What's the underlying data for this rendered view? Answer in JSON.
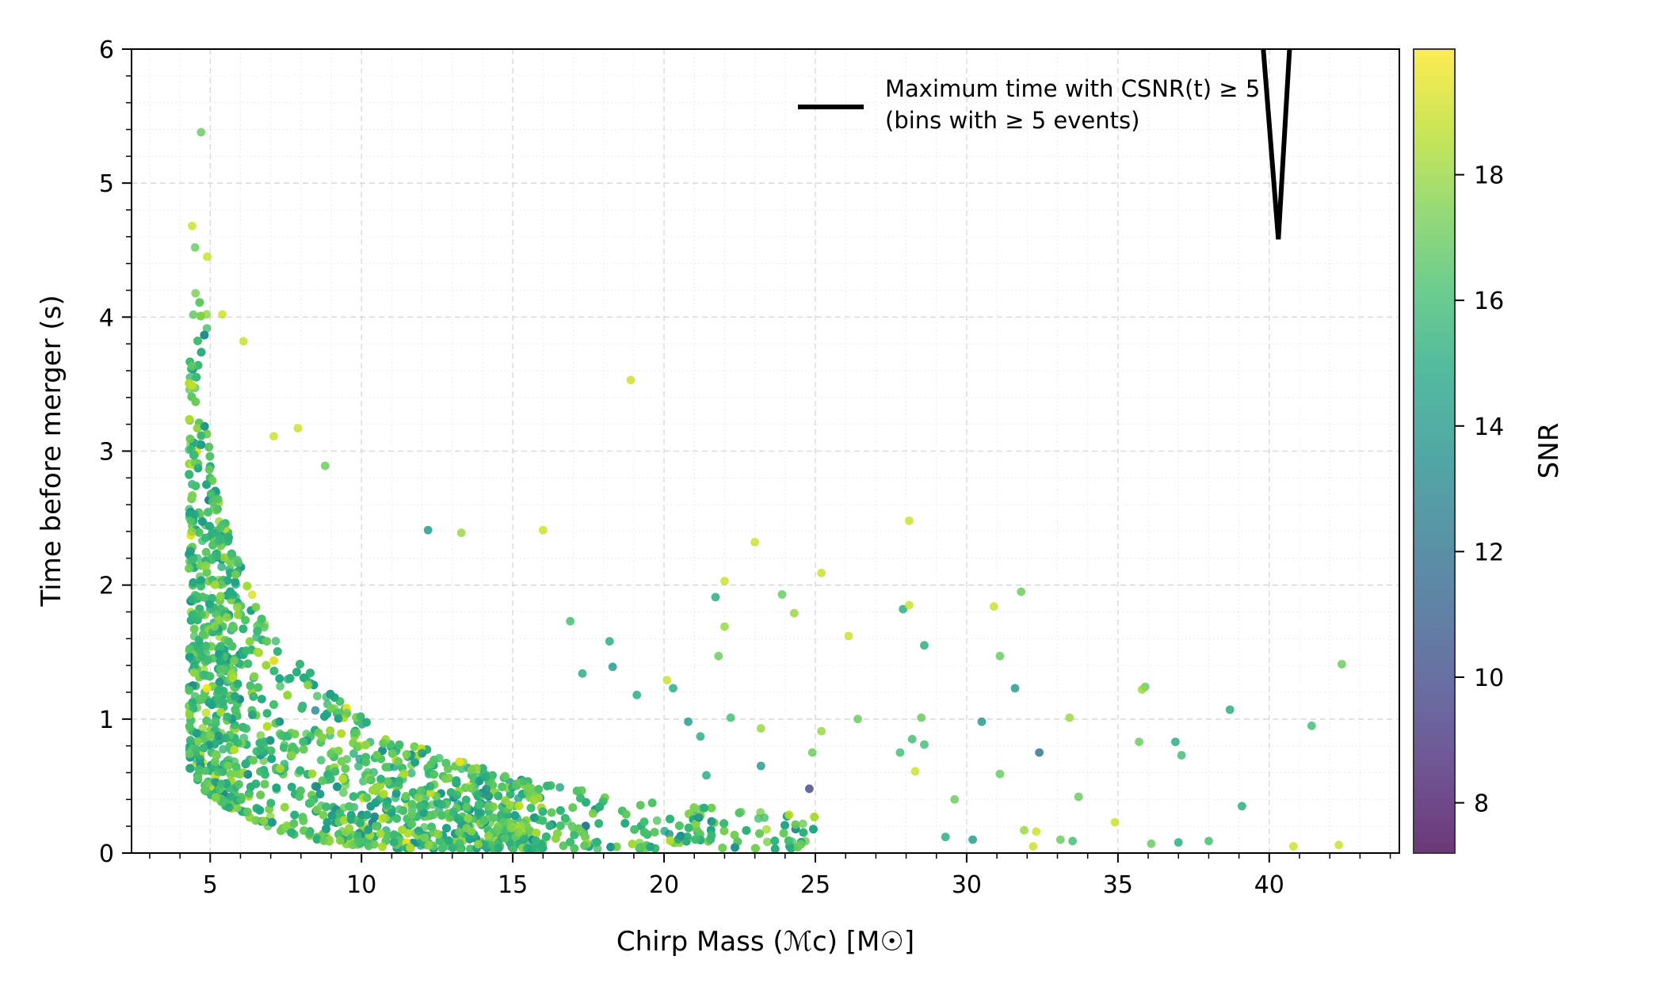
{
  "chart_data": {
    "type": "scatter",
    "xlabel": "Chirp Mass (ℳc) [M☉]",
    "ylabel": "Time before merger (s)",
    "xlim": [
      2.4,
      44.3
    ],
    "ylim": [
      0,
      6
    ],
    "x_ticks": [
      "5",
      "10",
      "15",
      "20",
      "25",
      "30",
      "35",
      "40"
    ],
    "y_ticks": [
      "0",
      "1",
      "2",
      "3",
      "4",
      "5",
      "6"
    ],
    "grid": true,
    "colorbar": {
      "label": "SNR",
      "colormap": "viridis",
      "range": [
        7.2,
        20
      ],
      "ticks": [
        "8",
        "10",
        "12",
        "14",
        "16",
        "18"
      ]
    },
    "legend": {
      "placement": "top-right",
      "lines": [
        "Maximum time with CSNR(t) ≥ 5",
        "(bins with ≥ 5 events)"
      ]
    },
    "series": [
      {
        "name": "Maximum time with CSNR(t) ≥ 5 (bins with ≥ 5 events)",
        "kind": "line",
        "color": "#000000",
        "points": [
          [
            39.7,
            6.3
          ],
          [
            40.3,
            4.58
          ],
          [
            40.75,
            6.3
          ]
        ]
      },
      {
        "name": "events",
        "kind": "scatter",
        "n_points": 4000,
        "points": [
          [
            4.7,
            5.38,
            17
          ],
          [
            4.4,
            4.68,
            19
          ],
          [
            4.5,
            4.52,
            17
          ],
          [
            4.9,
            4.45,
            19
          ],
          [
            5.4,
            4.02,
            19
          ],
          [
            6.1,
            3.82,
            19
          ],
          [
            18.9,
            3.53,
            19
          ],
          [
            7.9,
            3.17,
            19
          ],
          [
            7.1,
            3.11,
            19
          ],
          [
            8.8,
            2.89,
            17
          ],
          [
            16.0,
            2.41,
            19
          ],
          [
            12.2,
            2.41,
            14
          ],
          [
            13.3,
            2.39,
            18
          ],
          [
            28.1,
            2.48,
            19
          ],
          [
            23.0,
            2.32,
            19
          ],
          [
            25.2,
            2.09,
            19
          ],
          [
            22.0,
            2.03,
            19
          ],
          [
            21.7,
            1.91,
            15
          ],
          [
            23.9,
            1.93,
            17
          ],
          [
            27.9,
            1.82,
            15
          ],
          [
            28.1,
            1.85,
            19
          ],
          [
            30.9,
            1.84,
            19
          ],
          [
            31.8,
            1.95,
            17
          ],
          [
            24.3,
            1.79,
            18
          ],
          [
            16.9,
            1.73,
            16
          ],
          [
            22.0,
            1.69,
            18
          ],
          [
            18.2,
            1.58,
            15
          ],
          [
            26.1,
            1.62,
            19
          ],
          [
            28.6,
            1.55,
            15
          ],
          [
            21.8,
            1.47,
            17
          ],
          [
            31.1,
            1.47,
            17
          ],
          [
            42.4,
            1.41,
            17
          ],
          [
            18.3,
            1.39,
            14
          ],
          [
            17.3,
            1.34,
            15
          ],
          [
            35.9,
            1.24,
            17
          ],
          [
            35.8,
            1.22,
            18
          ],
          [
            31.6,
            1.23,
            14
          ],
          [
            20.1,
            1.29,
            19
          ],
          [
            20.3,
            1.23,
            15
          ],
          [
            19.1,
            1.18,
            15
          ],
          [
            28.5,
            1.01,
            17
          ],
          [
            22.2,
            1.01,
            16
          ],
          [
            26.4,
            1.0,
            17
          ],
          [
            30.5,
            0.98,
            14
          ],
          [
            33.4,
            1.01,
            18
          ],
          [
            38.7,
            1.07,
            15
          ],
          [
            41.4,
            0.95,
            16
          ],
          [
            20.8,
            0.98,
            14
          ],
          [
            23.2,
            0.93,
            18
          ],
          [
            25.2,
            0.91,
            18
          ],
          [
            21.2,
            0.87,
            15
          ],
          [
            28.2,
            0.85,
            16
          ],
          [
            28.6,
            0.81,
            16
          ],
          [
            35.7,
            0.83,
            17
          ],
          [
            36.9,
            0.83,
            15
          ],
          [
            37.1,
            0.73,
            16
          ],
          [
            32.4,
            0.75,
            12
          ],
          [
            27.8,
            0.75,
            16
          ],
          [
            31.1,
            0.59,
            17
          ],
          [
            28.3,
            0.61,
            19
          ],
          [
            23.2,
            0.65,
            14
          ],
          [
            21.4,
            0.58,
            15
          ],
          [
            24.9,
            0.75,
            17
          ],
          [
            33.7,
            0.42,
            17
          ],
          [
            29.6,
            0.4,
            17
          ],
          [
            24.8,
            0.48,
            10
          ],
          [
            39.1,
            0.35,
            15
          ],
          [
            34.9,
            0.23,
            19
          ],
          [
            40.8,
            0.05,
            19
          ],
          [
            42.3,
            0.06,
            19
          ],
          [
            36.1,
            0.07,
            17
          ],
          [
            38.0,
            0.09,
            16
          ],
          [
            37.0,
            0.08,
            15
          ],
          [
            33.1,
            0.1,
            17
          ],
          [
            33.5,
            0.09,
            16
          ],
          [
            32.2,
            0.05,
            19
          ],
          [
            31.9,
            0.17,
            18
          ],
          [
            32.3,
            0.16,
            19
          ],
          [
            30.2,
            0.1,
            14
          ],
          [
            29.3,
            0.12,
            15
          ]
        ]
      }
    ]
  }
}
